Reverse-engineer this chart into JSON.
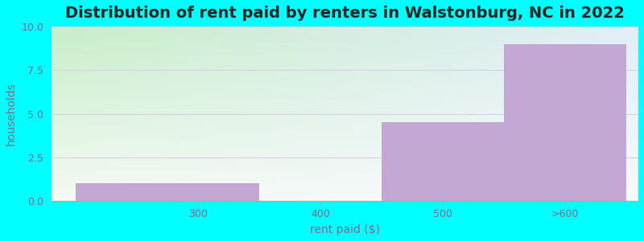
{
  "categories": [
    "300",
    "400",
    "500",
    ">600"
  ],
  "values": [
    1,
    0,
    4.5,
    9
  ],
  "bar_color": "#c4a8d4",
  "bar_edgecolor": "#c4a8d4",
  "title": "Distribution of rent paid by renters in Walstonburg, NC in 2022",
  "xlabel": "rent paid ($)",
  "ylabel": "households",
  "ylim": [
    0,
    10
  ],
  "yticks": [
    0,
    2.5,
    5,
    7.5,
    10
  ],
  "bg_color_outer": "#00ffff",
  "bg_color_plot_top_left": "#c8eec8",
  "bg_color_plot_top_right": "#e0eef8",
  "bg_color_plot_bottom": "#f4faf4",
  "grid_color": "#d8d0e0",
  "title_fontsize": 14,
  "axis_label_fontsize": 10,
  "tick_fontsize": 9,
  "tick_color": "#886688"
}
